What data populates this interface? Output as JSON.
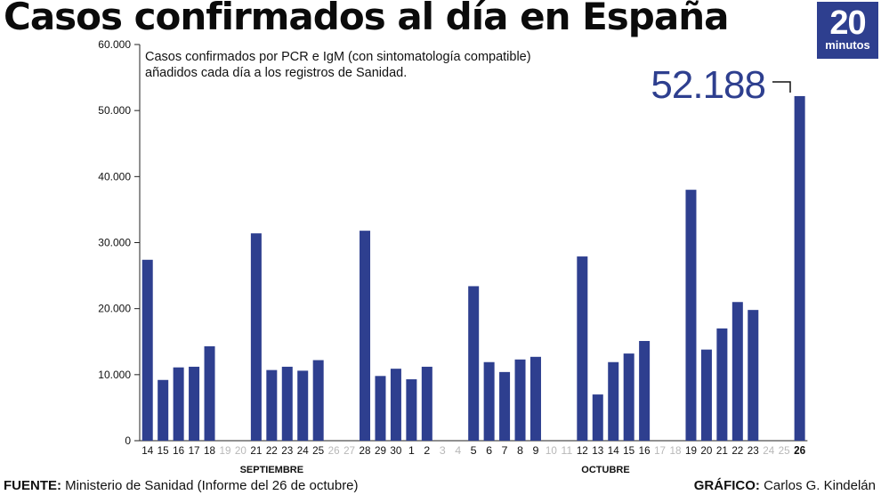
{
  "title": "Casos confirmados al día en España",
  "logo": {
    "number": "20",
    "word": "minutos"
  },
  "footer": {
    "source_label": "FUENTE:",
    "source_text": "Ministerio de Sanidad (Informe del 26 de octubre)",
    "credit_label": "GRÁFICO:",
    "credit_text": "Carlos G. Kindelán"
  },
  "chart_data": {
    "type": "bar",
    "subtitle": "Casos confirmados por PCR e IgM (con sintomatología compatible) añadidos cada día a los registros de Sanidad.",
    "subtitle_lines": [
      "Casos confirmados por PCR e IgM (con sintomatología compatible)",
      "añadidos cada día a los registros de Sanidad."
    ],
    "categories": [
      "14",
      "15",
      "16",
      "17",
      "18",
      "19",
      "20",
      "21",
      "22",
      "23",
      "24",
      "25",
      "26",
      "27",
      "28",
      "29",
      "30",
      "1",
      "2",
      "3",
      "4",
      "5",
      "6",
      "7",
      "8",
      "9",
      "10",
      "11",
      "12",
      "13",
      "14",
      "15",
      "16",
      "17",
      "18",
      "19",
      "20",
      "21",
      "22",
      "23",
      "24",
      "25",
      "26"
    ],
    "values": [
      27400,
      9200,
      11100,
      11200,
      14300,
      null,
      null,
      31400,
      10700,
      11200,
      10600,
      12200,
      null,
      null,
      31800,
      9800,
      10900,
      9300,
      11200,
      null,
      null,
      23400,
      11900,
      10400,
      12300,
      12700,
      null,
      null,
      27900,
      7000,
      11900,
      13200,
      15100,
      null,
      null,
      38000,
      13800,
      17000,
      21000,
      19800,
      null,
      null,
      52188
    ],
    "month_labels": [
      {
        "label": "SEPTIEMBRE",
        "from_index": 0,
        "to_index": 16
      },
      {
        "label": "OCTUBRE",
        "from_index": 17,
        "to_index": 42
      }
    ],
    "highlight": {
      "index": 42,
      "label": "52.188"
    },
    "y_ticks": [
      0,
      10000,
      20000,
      30000,
      40000,
      50000,
      60000
    ],
    "y_tick_labels": [
      "0",
      "10.000",
      "20.000",
      "30.000",
      "40.000",
      "50.000",
      "60.000"
    ],
    "ylim": [
      0,
      60000
    ],
    "bar_color": "#2e3f8f",
    "empty_label_color": "#b8b8b8",
    "grid": false
  }
}
